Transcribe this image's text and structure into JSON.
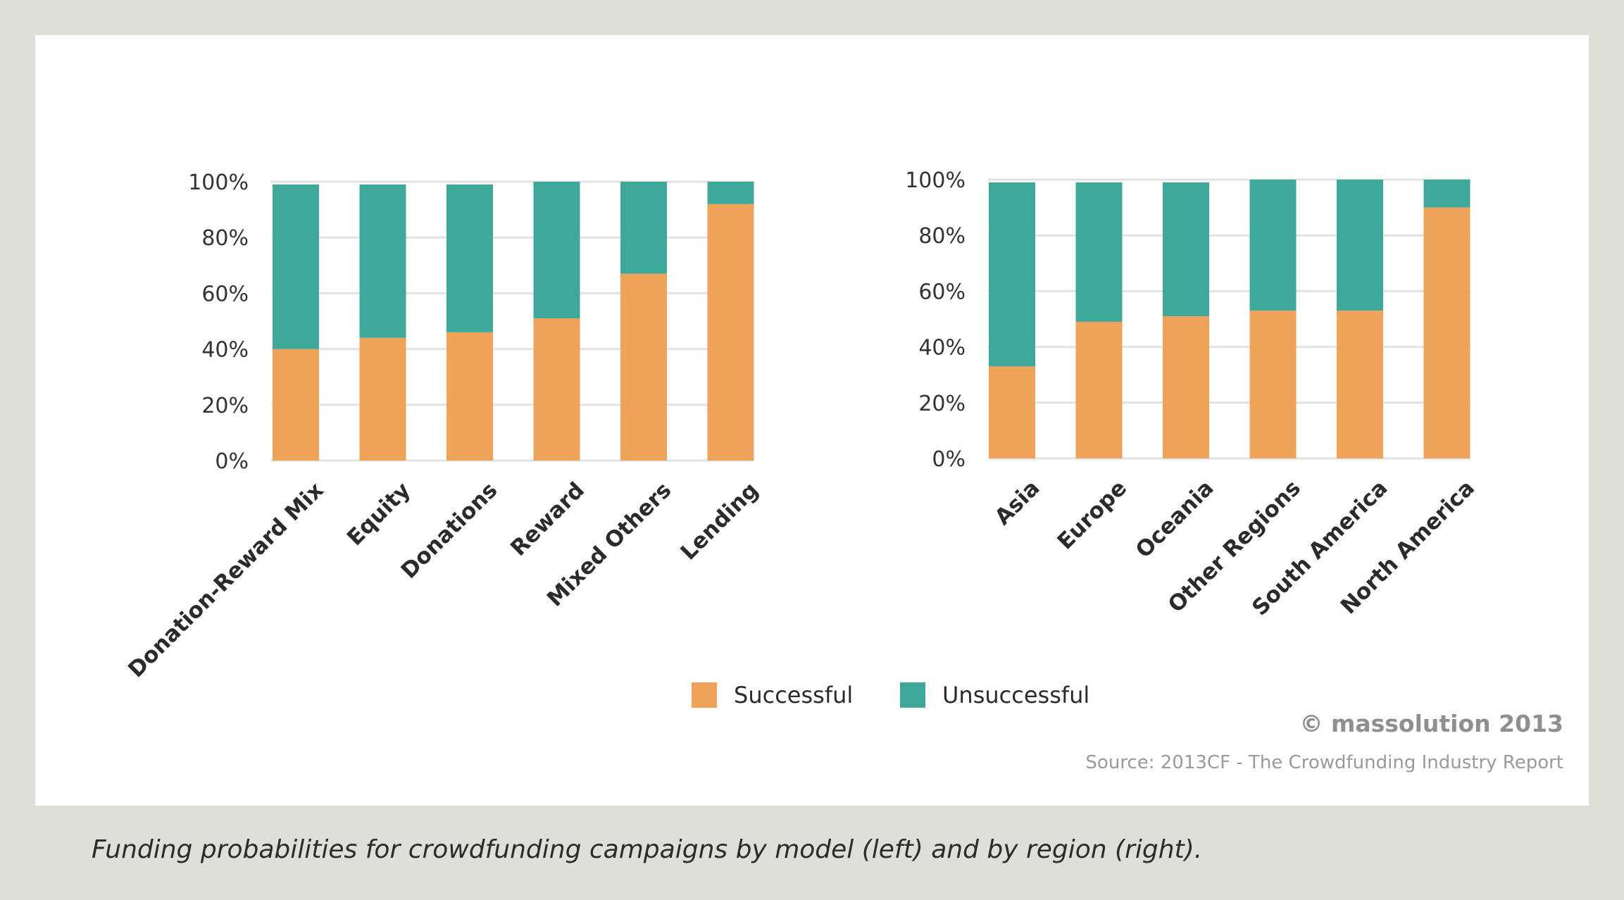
{
  "colors": {
    "successful": "#eea25a",
    "unsuccessful": "#3ea99a",
    "grid": "#e2e2e2"
  },
  "chart_data": [
    {
      "type": "bar",
      "stacked": true,
      "title": "",
      "xlabel": "",
      "ylabel": "",
      "ylim": [
        0,
        100
      ],
      "yticks": [
        "0%",
        "20%",
        "40%",
        "60%",
        "80%",
        "100%"
      ],
      "grid": true,
      "categories": [
        "Donation-Reward Mix",
        "Equity",
        "Donations",
        "Reward",
        "Mixed Others",
        "Lending"
      ],
      "series": [
        {
          "name": "Successful",
          "values": [
            40,
            44,
            46,
            51,
            67,
            92
          ]
        },
        {
          "name": "Unsuccessful",
          "values": [
            59,
            55,
            53,
            49,
            33,
            8
          ]
        }
      ]
    },
    {
      "type": "bar",
      "stacked": true,
      "title": "",
      "xlabel": "",
      "ylabel": "",
      "ylim": [
        0,
        100
      ],
      "yticks": [
        "0%",
        "20%",
        "40%",
        "60%",
        "80%",
        "100%"
      ],
      "grid": true,
      "categories": [
        "Asia",
        "Europe",
        "Oceania",
        "Other Regions",
        "South America",
        "North America"
      ],
      "series": [
        {
          "name": "Successful",
          "values": [
            33,
            49,
            51,
            53,
            53,
            90
          ]
        },
        {
          "name": "Unsuccessful",
          "values": [
            66,
            50,
            48,
            47,
            47,
            10
          ]
        }
      ]
    }
  ],
  "legend": {
    "successful": "Successful",
    "unsuccessful": "Unsuccessful"
  },
  "footer": {
    "copyright": "© massolution 2013",
    "source": "Source: 2013CF - The Crowdfunding Industry Report"
  },
  "caption": "Funding probabilities for crowdfunding campaigns by model (left) and by region (right)."
}
